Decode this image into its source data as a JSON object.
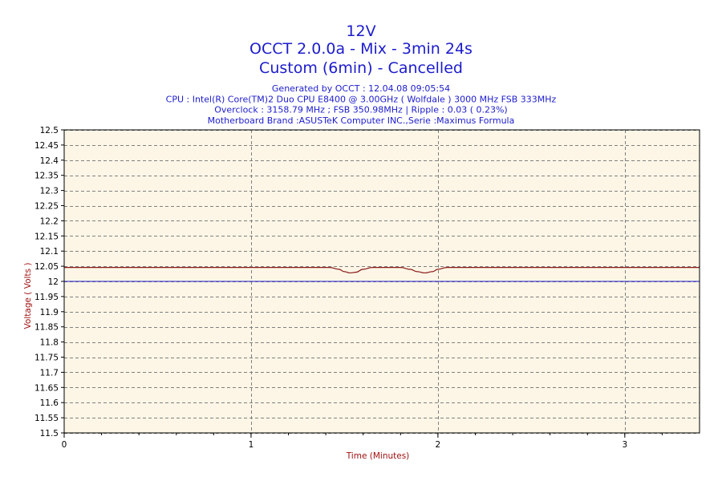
{
  "chart_data": {
    "type": "line",
    "title_lines": [
      "12V",
      "OCCT 2.0.0a - Mix - 3min 24s",
      "Custom (6min) - Cancelled"
    ],
    "info_lines": [
      "Generated by OCCT : 12.04.08 09:05:54",
      "CPU : Intel(R) Core(TM)2 Duo CPU E8400 @ 3.00GHz ( Wolfdale ) 3000 MHz FSB 333MHz",
      "Overclock : 3158.79 MHz ; FSB 350.98MHz | Ripple : 0.03 ( 0.23%)",
      "Motherboard Brand :ASUSTeK Computer INC.,Serie :Maximus Formula"
    ],
    "xlabel": "Time (Minutes)",
    "ylabel": "Voltage ( Volts )",
    "xlim": [
      0,
      3.4
    ],
    "ylim": [
      11.5,
      12.5
    ],
    "xticks": [
      "0",
      "1",
      "2",
      "3"
    ],
    "xtick_values": [
      0,
      1,
      2,
      3
    ],
    "yticks": [
      "12.5",
      "12.45",
      "12.4",
      "12.35",
      "12.3",
      "12.25",
      "12.2",
      "12.15",
      "12.1",
      "12.05",
      "12",
      "11.95",
      "11.9",
      "11.85",
      "11.8",
      "11.75",
      "11.7",
      "11.65",
      "11.6",
      "11.55",
      "11.5"
    ],
    "ytick_values": [
      12.5,
      12.45,
      12.4,
      12.35,
      12.3,
      12.25,
      12.2,
      12.15,
      12.1,
      12.05,
      12,
      11.95,
      11.9,
      11.85,
      11.8,
      11.75,
      11.7,
      11.65,
      11.6,
      11.55,
      11.5
    ],
    "grid": true,
    "reference_line": {
      "y": 12.0,
      "color": "#1c1ccc"
    },
    "series": [
      {
        "color": "#8b1a1a",
        "x": [
          0,
          1.42,
          1.47,
          1.5,
          1.53,
          1.56,
          1.6,
          1.65,
          1.8,
          1.85,
          1.89,
          1.93,
          1.97,
          2.0,
          2.05,
          3.4
        ],
        "y": [
          12.046,
          12.046,
          12.04,
          12.032,
          12.028,
          12.03,
          12.04,
          12.046,
          12.046,
          12.04,
          12.032,
          12.028,
          12.032,
          12.04,
          12.046,
          12.046
        ]
      }
    ],
    "colors": {
      "plot_background": "#fdf6e6",
      "grid": "#808080",
      "title": "#1c1ccc",
      "axis_label": "#a01010"
    }
  }
}
